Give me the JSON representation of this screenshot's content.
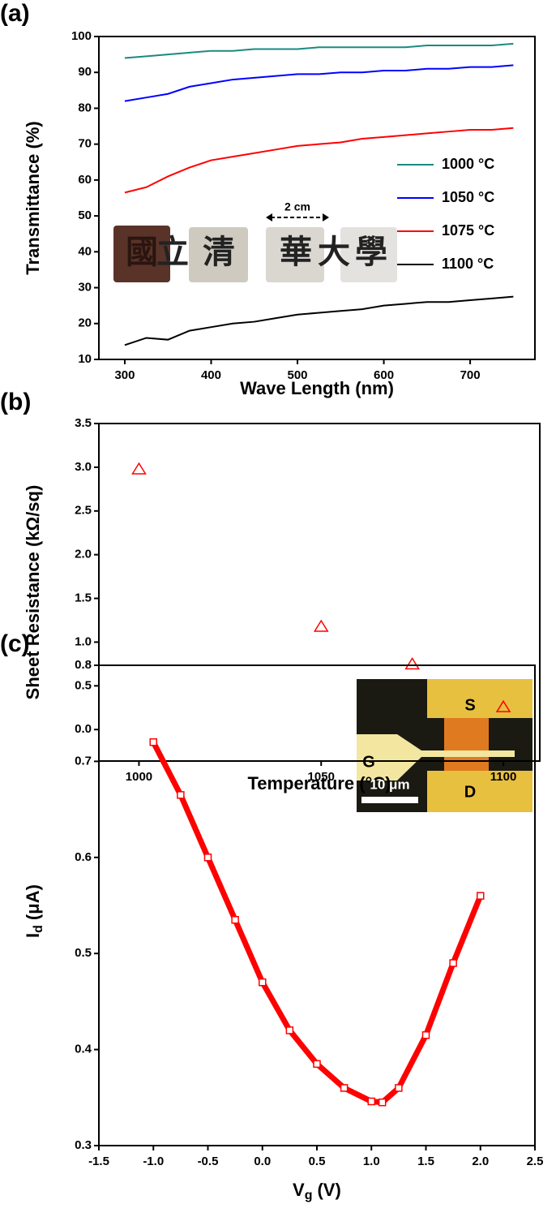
{
  "chart_data": [
    {
      "type": "line",
      "panel_label": "(a)",
      "xlabel": "Wave Length (nm)",
      "ylabel": "Transmittance (%)",
      "x": [
        300,
        325,
        350,
        375,
        400,
        425,
        450,
        475,
        500,
        525,
        550,
        575,
        600,
        625,
        650,
        675,
        700,
        725,
        750
      ],
      "series": [
        {
          "name": "1000 °C",
          "color": "#1a8a80",
          "values": [
            94,
            94.5,
            95,
            95.5,
            96,
            96,
            96.5,
            96.5,
            96.5,
            97,
            97,
            97,
            97,
            97,
            97.5,
            97.5,
            97.5,
            97.5,
            98
          ]
        },
        {
          "name": "1050 °C",
          "color": "#0000ff",
          "values": [
            82,
            83,
            84,
            86,
            87,
            88,
            88.5,
            89,
            89.5,
            89.5,
            90,
            90,
            90.5,
            90.5,
            91,
            91,
            91.5,
            91.5,
            92
          ]
        },
        {
          "name": "1075 °C",
          "color": "#ff0000",
          "values": [
            56.5,
            58,
            61,
            63.5,
            65.5,
            66.5,
            67.5,
            68.5,
            69.5,
            70,
            70.5,
            71.5,
            72,
            72.5,
            73,
            73.5,
            74,
            74,
            74.5
          ]
        },
        {
          "name": "1100 °C",
          "color": "#000000",
          "values": [
            14,
            16,
            15.5,
            18,
            19,
            20,
            20.5,
            21.5,
            22.5,
            23,
            23.5,
            24,
            25,
            25.5,
            26,
            26,
            26.5,
            27,
            27.5
          ]
        }
      ],
      "xlim": [
        270,
        775
      ],
      "ylim": [
        10,
        100
      ],
      "xticks": [
        300,
        400,
        500,
        600,
        700
      ],
      "yticks": [
        10,
        20,
        30,
        40,
        50,
        60,
        70,
        80,
        90,
        100
      ],
      "legend": "center right",
      "inset_texts": [
        "國",
        "立",
        "清",
        "華",
        "大",
        "學"
      ],
      "inset_scale": "2 cm"
    },
    {
      "type": "scatter",
      "panel_label": "(b)",
      "xlabel": "Temperature (°C)",
      "ylabel": "Sheet Resistance (kΩ/sq)",
      "x": [
        1000,
        1050,
        1075,
        1100
      ],
      "values": [
        2.98,
        1.18,
        0.75,
        0.26
      ],
      "color": "#ff0000",
      "xlim": [
        989,
        1110
      ],
      "ylim": [
        -0.36,
        3.5
      ],
      "xticks": [
        1000,
        1050,
        1100
      ],
      "yticks": [
        {
          "value": 0,
          "label": "0.0"
        },
        0.5,
        {
          "value": 1,
          "label": "1.0"
        },
        1.5,
        {
          "value": 2,
          "label": "2.0"
        },
        2.5,
        {
          "value": 3,
          "label": "3.0"
        },
        3.5
      ]
    },
    {
      "type": "line",
      "panel_label": "(c)",
      "xlabel": {
        "main": "V",
        "sub": "g",
        "unit": "(V)"
      },
      "ylabel": {
        "main": "I",
        "sub": "d",
        "unit": "(μA)"
      },
      "x": [
        -1.0,
        -0.75,
        -0.5,
        -0.25,
        0,
        0.25,
        0.5,
        0.75,
        1.0,
        1.1,
        1.25,
        1.5,
        1.75,
        2.0
      ],
      "series": [
        {
          "color": "#ff0000",
          "values": [
            0.72,
            0.665,
            0.6,
            0.535,
            0.47,
            0.42,
            0.385,
            0.36,
            0.346,
            0.345,
            0.36,
            0.415,
            0.49,
            0.56
          ]
        }
      ],
      "xlim": [
        -1.5,
        2.5
      ],
      "ylim": [
        0.3,
        0.8
      ],
      "xticks": [
        {
          "value": -1.5,
          "label": "-1.5"
        },
        {
          "value": -1,
          "label": "-1.0"
        },
        {
          "value": -0.5,
          "label": "-0.5"
        },
        {
          "value": 0,
          "label": "0.0"
        },
        0.5,
        {
          "value": 1,
          "label": "1.0"
        },
        1.5,
        {
          "value": 2,
          "label": "2.0"
        },
        2.5
      ],
      "yticks": [
        0.3,
        0.4,
        0.5,
        0.6,
        0.7,
        0.8
      ],
      "inset_texts": [
        "S",
        "G",
        "D",
        "10 μm"
      ]
    }
  ]
}
